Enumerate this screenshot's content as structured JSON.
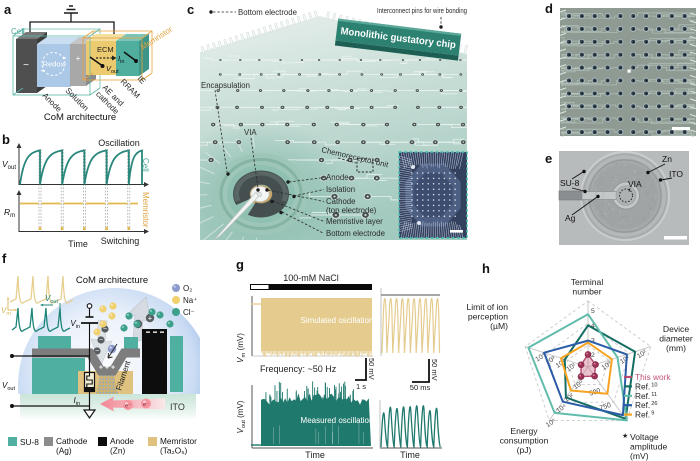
{
  "figure_title": "Chemoreceptive organic memristor (CoM) gustatory chip figure",
  "colors": {
    "teal_dark": "#1d8478",
    "teal_mid": "#4fb0a1",
    "teal_light": "#62bcab",
    "orange": "#e8b44c",
    "tan": "#e5cc8e",
    "blue": "#2a5ca8",
    "pink": "#c0547a",
    "chip_teal": "#aed2c8",
    "gray": "#808080"
  },
  "panel_a": {
    "letter": "a",
    "caption": "CoM architecture",
    "cell_label": "Cell",
    "memristor_label": "Memristor",
    "ecm_label": "ECM",
    "minus": "−",
    "plus": "+",
    "redox": "Redox",
    "i_in": {
      "main": "I",
      "sub": "in"
    },
    "v_out": {
      "main": "V",
      "sub": "out"
    },
    "layer_anode": "Anode",
    "layer_solution": "Solution",
    "layer_ae_1": "AE and",
    "layer_ae_2": "cathode",
    "layer_rram": "RRAM",
    "layer_ie": "IE"
  },
  "panel_b": {
    "letter": "b",
    "title": "Oscillation",
    "bottom_title": "Switching",
    "y1": {
      "main": "V",
      "sub": "out"
    },
    "y2": {
      "main": "R",
      "sub": "m"
    },
    "xlabel": "Time",
    "right1": "Cell",
    "right2": "Memristor"
  },
  "panel_c": {
    "letter": "c",
    "banner": "Monolithic gustatory chip",
    "label_bottom_electrode_top": "Bottom electrode",
    "label_pins": "Interconnect pins for wire bonding",
    "label_encapsulation": "Encapsulation",
    "label_via": "VIA",
    "label_chemoreceptor": "Chemoreceptor unit",
    "label_anode": "Anode",
    "label_isolation": "Isolation",
    "label_cathode_1": "Cathode",
    "label_cathode_2": "(top electrode)",
    "label_memristive": "Memristive layer",
    "label_bottom_electrode": "Bottom electrode"
  },
  "panel_d": {
    "letter": "d",
    "grid_rows": 10,
    "grid_cols": 10
  },
  "panel_e": {
    "letter": "e",
    "label_su8": "SU-8",
    "label_ag": "Ag",
    "label_via": "VIA",
    "label_zn": "Zn",
    "label_ito": "ITO"
  },
  "panel_f": {
    "letter": "f",
    "title": "CoM architecture",
    "v_m": {
      "main": "V",
      "sub": "m"
    },
    "v_out_trace": {
      "main": "V",
      "sub": "out"
    },
    "v_in": {
      "main": "V",
      "sub": "in"
    },
    "i_in": {
      "main": "I",
      "sub": "in"
    },
    "v_out_left": {
      "main": "V",
      "sub": "out"
    },
    "ion_o2": "O₂",
    "ion_na": "Na⁺",
    "ion_cl": "Cl⁻",
    "filament": "Filament",
    "ito": "ITO",
    "plus_marks": "+ + +",
    "plus_sign": "+",
    "minus_sign": "−",
    "electron": "e⁻",
    "legend": [
      {
        "swatch": "#4fb0a1",
        "line1": "SU-8",
        "line2": ""
      },
      {
        "swatch": "#8c8c8c",
        "line1": "Cathode",
        "line2": "(Ag)"
      },
      {
        "swatch": "#0d0d0d",
        "line1": "Anode",
        "line2": "(Zn)"
      },
      {
        "swatch": "#dfc280",
        "line1": "Memristor",
        "line2": "(Ta₂O₅)"
      }
    ]
  },
  "panel_g": {
    "letter": "g",
    "stimulus": "100-mM NaCl",
    "sim_label": "Simulated oscillation",
    "meas_label": "Measured oscillation",
    "freq": "Frequency: ~50 Hz",
    "ylabel_top": {
      "main": "V",
      "sub": "m",
      "units": " (mV)"
    },
    "ylabel_bottom": {
      "main": "V",
      "sub": "out",
      "units": " (mV)"
    },
    "scale_v_left": "50 mV",
    "scale_t_left": "1 s",
    "scale_v_right": "50 mV",
    "scale_t_right": "50 ms",
    "xlabel_left": "Time",
    "xlabel_right": "Time"
  },
  "panel_h": {
    "letter": "h",
    "star": "★"
  },
  "chart_data": [
    {
      "panel": "b",
      "type": "line",
      "title": "Oscillation / Switching schematic",
      "xlabel": "Time",
      "series": [
        {
          "name": "Cell",
          "ylabel": "V_out",
          "annotation": "Oscillation",
          "shape": "RC-charging sawtooth",
          "n_cycles": 6,
          "color": "#2a877c"
        },
        {
          "name": "Memristor",
          "ylabel": "R_m",
          "annotation": "Switching",
          "shape": "high resistance with brief dips at each oscillation reset",
          "n_cycles": 6,
          "color": "#e2b94f"
        }
      ]
    },
    {
      "panel": "g",
      "type": "line",
      "title": "Oscillation under 100-mM NaCl",
      "stimulus": "100-mM NaCl",
      "frequency": "Frequency: ~50 Hz",
      "xlabel": "Time",
      "series": [
        {
          "name": "Simulated oscillation",
          "ylabel": "V_m (mV)",
          "color": "#e5cc8e",
          "scale_bars": [
            "50 mV",
            "1 s",
            "50 mV",
            "50 ms"
          ]
        },
        {
          "name": "Measured oscillation",
          "ylabel": "V_out (mV)",
          "color": "#20796d",
          "scale_bars": [
            "50 mV",
            "1 s",
            "50 mV",
            "50 ms"
          ]
        }
      ]
    },
    {
      "panel": "h",
      "type": "radar",
      "axes": [
        {
          "label": "Terminal number",
          "lines": [
            "Terminal",
            "number"
          ],
          "ticks": [
            {
              "f": 0.18,
              "t": "2"
            },
            {
              "f": 0.4,
              "t": "3"
            },
            {
              "f": 0.63,
              "t": "4"
            },
            {
              "f": 0.85,
              "t": "5"
            }
          ]
        },
        {
          "label": "Device diameter (mm)",
          "lines": [
            "Device",
            "diameter",
            "(mm)"
          ],
          "ticks": [
            {
              "f": 0.33,
              "t": "10⁰"
            },
            {
              "f": 0.62,
              "t": "10¹"
            },
            {
              "f": 0.89,
              "t": "10²"
            }
          ]
        },
        {
          "label": "Voltage amplitude (mV)",
          "lines": [
            "Voltage",
            "amplitude",
            "(mV)"
          ],
          "ticks": [
            {
              "f": 0.45,
              "t": "500"
            },
            {
              "f": 0.72,
              "t": "750"
            }
          ]
        },
        {
          "label": "Energy consumption (pJ)",
          "lines": [
            "Energy",
            "consumption",
            "(pJ)"
          ],
          "ticks": [
            {
              "f": 0.22,
              "t": "10⁰"
            },
            {
              "f": 0.46,
              "t": "10²"
            },
            {
              "f": 0.66,
              "t": "10⁴"
            },
            {
              "f": 0.93,
              "t": "10⁶"
            }
          ]
        },
        {
          "label": "Limit of ion perception (µM)",
          "lines": [
            "Limit of ion",
            "perception",
            "(µM)"
          ],
          "ticks": [
            {
              "f": 0.25,
              "t": "10¹"
            },
            {
              "f": 0.42,
              "t": "10²"
            },
            {
              "f": 0.58,
              "t": "10³"
            },
            {
              "f": 0.74,
              "t": "10⁴"
            }
          ]
        }
      ],
      "series": [
        {
          "name": "Ref.",
          "sup": "10",
          "color": "#156e63",
          "values": [
            0.63,
            0.75,
            0.97,
            0.57,
            0.37
          ]
        },
        {
          "name": "Ref.",
          "sup": "11",
          "color": "#62bcab",
          "values": [
            0.8,
            0.47,
            1.0,
            0.86,
            0.95
          ]
        },
        {
          "name": "Ref.",
          "sup": "26",
          "color": "#2a5ca8",
          "values": [
            0.4,
            0.62,
            0.9,
            0.65,
            0.7
          ]
        },
        {
          "name": "Ref.",
          "sup": "9",
          "color": "#f7a321",
          "values": [
            0.37,
            0.38,
            0.5,
            0.44,
            0.43
          ]
        },
        {
          "name": "This work",
          "sup": "",
          "color": "#b64a6d",
          "fill": "rgba(201,96,130,0.38)",
          "markers": true,
          "values": [
            0.19,
            0.12,
            0.17,
            0.18,
            0.11
          ]
        }
      ],
      "grid_rings": [
        0.33,
        0.66,
        1.0
      ]
    }
  ]
}
